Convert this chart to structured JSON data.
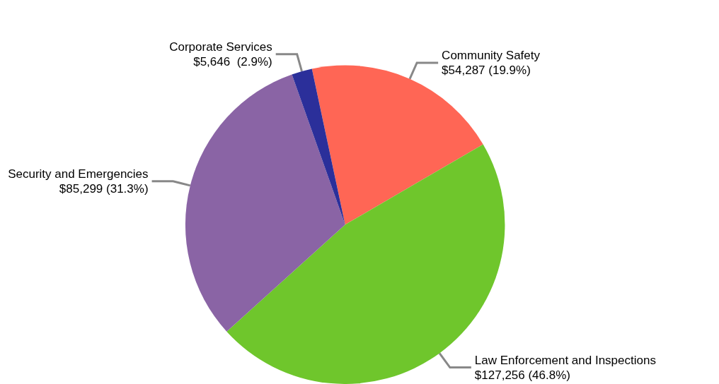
{
  "chart_data": {
    "type": "pie",
    "categories": [
      "Community Safety",
      "Law Enforcement and Inspections",
      "Security and Emergencies",
      "Corporate Services"
    ],
    "values": [
      54287,
      127256,
      85299,
      5646
    ],
    "value_labels": [
      "$54,287 (19.9%)",
      "$127,256 (46.8%)",
      "$85,299 (31.3%)",
      "$5,646  (2.9%)"
    ],
    "colors": [
      "#ff6655",
      "#6fc62c",
      "#8a64a5",
      "#2b2f9a"
    ],
    "legend": false
  }
}
